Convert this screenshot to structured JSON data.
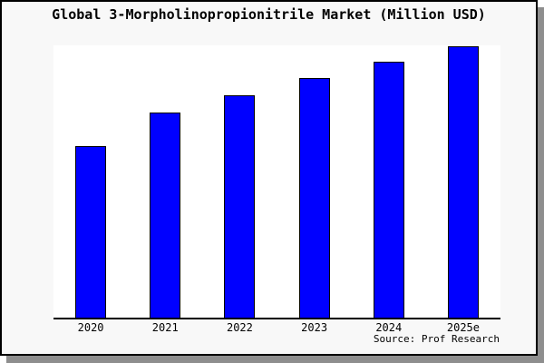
{
  "title": "Global 3-Morpholinopropionitrile Market (Million USD)",
  "source_label": "Source: Prof Research",
  "colors": {
    "bar_fill": "#0000ff",
    "bar_border": "#000000",
    "card_background": "#f8f8f8",
    "plot_background": "#ffffff",
    "axis": "#000000",
    "shadow": "#8e8e8e",
    "text": "#000000"
  },
  "chart_data": {
    "type": "bar",
    "title": "Global 3-Morpholinopropionitrile Market (Million USD)",
    "categories": [
      "2020",
      "2021",
      "2022",
      "2023",
      "2024",
      "2025e"
    ],
    "values": [
      62.9,
      75.3,
      81.6,
      88.0,
      94.0,
      100.0
    ],
    "xlabel": "",
    "ylabel": "",
    "ylim": [
      0,
      100.5
    ],
    "y_axis_labeled": false,
    "grid": false,
    "legend": false,
    "note": "No y-axis ticks or data labels are shown in the image; values are relative bar heights normalized so 2025e = 100.",
    "annotations": [
      "Source: Prof Research"
    ]
  }
}
